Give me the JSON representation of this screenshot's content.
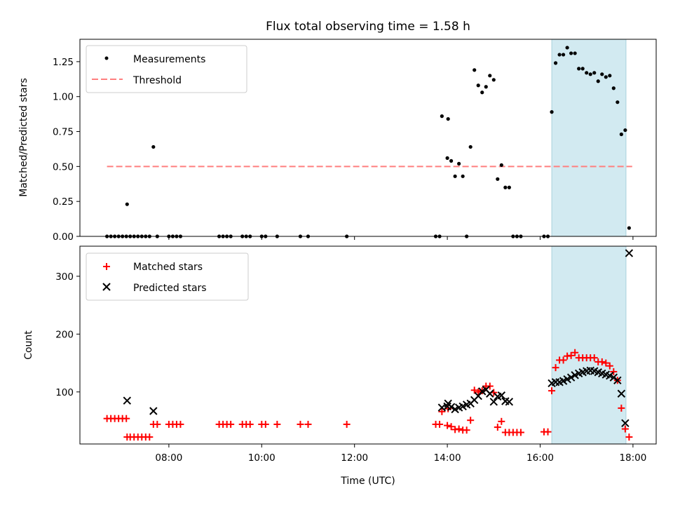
{
  "colors": {
    "measurement": "#000000",
    "threshold": "#ff7f7f",
    "matched": "#ff0000",
    "predicted": "#000000",
    "highlight": "#add8e6"
  },
  "chart_data": [
    {
      "type": "scatter",
      "title": "Flux total observing time = 1.58 h",
      "xlabel": "",
      "ylabel": "Matched/Predicted stars",
      "xlim": [
        "06:05",
        "18:30"
      ],
      "ylim": [
        0,
        1.41
      ],
      "yticks": [
        "0.00",
        "0.25",
        "0.50",
        "0.75",
        "1.00",
        "1.25"
      ],
      "legend": {
        "position": "top-left",
        "entries": [
          "Measurements",
          "Threshold"
        ]
      },
      "highlight_span": [
        "16:15",
        "17:51"
      ],
      "threshold": {
        "name": "Threshold",
        "value": 0.5,
        "x_range": [
          "06:40",
          "17:59"
        ]
      },
      "series": [
        {
          "name": "Measurements",
          "points": [
            [
              "06:40",
              0
            ],
            [
              "06:45",
              0
            ],
            [
              "06:50",
              0
            ],
            [
              "06:55",
              0
            ],
            [
              "07:00",
              0
            ],
            [
              "07:05",
              0
            ],
            [
              "07:06",
              0.23
            ],
            [
              "07:10",
              0
            ],
            [
              "07:15",
              0
            ],
            [
              "07:20",
              0
            ],
            [
              "07:25",
              0
            ],
            [
              "07:30",
              0
            ],
            [
              "07:35",
              0
            ],
            [
              "07:40",
              0.64
            ],
            [
              "07:45",
              0
            ],
            [
              "08:00",
              0
            ],
            [
              "08:05",
              0
            ],
            [
              "08:10",
              0
            ],
            [
              "08:15",
              0
            ],
            [
              "09:05",
              0
            ],
            [
              "09:10",
              0
            ],
            [
              "09:15",
              0
            ],
            [
              "09:20",
              0
            ],
            [
              "09:35",
              0
            ],
            [
              "09:40",
              0
            ],
            [
              "09:45",
              0
            ],
            [
              "10:00",
              0
            ],
            [
              "10:05",
              0
            ],
            [
              "10:20",
              0
            ],
            [
              "10:50",
              0
            ],
            [
              "11:00",
              0
            ],
            [
              "11:50",
              0
            ],
            [
              "13:45",
              0
            ],
            [
              "13:50",
              0
            ],
            [
              "13:53",
              0.86
            ],
            [
              "14:00",
              0.56
            ],
            [
              "14:01",
              0.84
            ],
            [
              "14:05",
              0.54
            ],
            [
              "14:10",
              0.43
            ],
            [
              "14:15",
              0.52
            ],
            [
              "14:20",
              0.43
            ],
            [
              "14:25",
              0
            ],
            [
              "14:30",
              0.64
            ],
            [
              "14:35",
              1.19
            ],
            [
              "14:40",
              1.08
            ],
            [
              "14:45",
              1.03
            ],
            [
              "14:50",
              1.07
            ],
            [
              "14:55",
              1.15
            ],
            [
              "15:00",
              1.12
            ],
            [
              "15:05",
              0.41
            ],
            [
              "15:10",
              0.51
            ],
            [
              "15:15",
              0.35
            ],
            [
              "15:20",
              0.35
            ],
            [
              "15:25",
              0
            ],
            [
              "15:30",
              0
            ],
            [
              "15:35",
              0
            ],
            [
              "16:05",
              0
            ],
            [
              "16:10",
              0
            ],
            [
              "16:15",
              0.89
            ],
            [
              "16:20",
              1.24
            ],
            [
              "16:25",
              1.3
            ],
            [
              "16:30",
              1.3
            ],
            [
              "16:35",
              1.35
            ],
            [
              "16:40",
              1.31
            ],
            [
              "16:45",
              1.31
            ],
            [
              "16:50",
              1.2
            ],
            [
              "16:55",
              1.2
            ],
            [
              "17:00",
              1.17
            ],
            [
              "17:05",
              1.16
            ],
            [
              "17:10",
              1.17
            ],
            [
              "17:15",
              1.11
            ],
            [
              "17:20",
              1.16
            ],
            [
              "17:25",
              1.14
            ],
            [
              "17:30",
              1.15
            ],
            [
              "17:35",
              1.06
            ],
            [
              "17:40",
              0.96
            ],
            [
              "17:45",
              0.73
            ],
            [
              "17:50",
              0.76
            ],
            [
              "17:55",
              0.06
            ]
          ]
        }
      ]
    },
    {
      "type": "scatter",
      "title": "",
      "xlabel": "Time (UTC)",
      "ylabel": "Count",
      "xlim": [
        "06:05",
        "18:30"
      ],
      "ylim": [
        10,
        352
      ],
      "yticks": [
        "100",
        "200",
        "300"
      ],
      "xticks": [
        "08:00",
        "10:00",
        "12:00",
        "14:00",
        "16:00",
        "18:00"
      ],
      "legend": {
        "position": "top-left",
        "entries": [
          "Matched stars",
          "Predicted stars"
        ]
      },
      "highlight_span": [
        "16:15",
        "17:51"
      ],
      "series": [
        {
          "name": "Matched stars",
          "points": [
            [
              "06:40",
              54
            ],
            [
              "06:45",
              54
            ],
            [
              "06:50",
              54
            ],
            [
              "06:55",
              54
            ],
            [
              "07:00",
              54
            ],
            [
              "07:05",
              54
            ],
            [
              "07:06",
              22
            ],
            [
              "07:10",
              22
            ],
            [
              "07:15",
              22
            ],
            [
              "07:20",
              22
            ],
            [
              "07:25",
              22
            ],
            [
              "07:30",
              22
            ],
            [
              "07:35",
              22
            ],
            [
              "07:40",
              44
            ],
            [
              "07:45",
              44
            ],
            [
              "08:00",
              44
            ],
            [
              "08:05",
              44
            ],
            [
              "08:10",
              44
            ],
            [
              "08:15",
              44
            ],
            [
              "09:05",
              44
            ],
            [
              "09:10",
              44
            ],
            [
              "09:15",
              44
            ],
            [
              "09:20",
              44
            ],
            [
              "09:35",
              44
            ],
            [
              "09:40",
              44
            ],
            [
              "09:45",
              44
            ],
            [
              "10:00",
              44
            ],
            [
              "10:05",
              44
            ],
            [
              "10:20",
              44
            ],
            [
              "10:50",
              44
            ],
            [
              "11:00",
              44
            ],
            [
              "11:50",
              44
            ],
            [
              "13:45",
              44
            ],
            [
              "13:50",
              44
            ],
            [
              "13:53",
              66
            ],
            [
              "14:00",
              42
            ],
            [
              "14:01",
              71
            ],
            [
              "14:05",
              40
            ],
            [
              "14:10",
              35
            ],
            [
              "14:15",
              36
            ],
            [
              "14:20",
              34
            ],
            [
              "14:25",
              34
            ],
            [
              "14:30",
              51
            ],
            [
              "14:35",
              103
            ],
            [
              "14:40",
              100
            ],
            [
              "14:45",
              102
            ],
            [
              "14:50",
              110
            ],
            [
              "14:55",
              110
            ],
            [
              "15:00",
              99
            ],
            [
              "15:05",
              39
            ],
            [
              "15:10",
              49
            ],
            [
              "15:15",
              30
            ],
            [
              "15:20",
              30
            ],
            [
              "15:25",
              30
            ],
            [
              "15:30",
              30
            ],
            [
              "15:35",
              30
            ],
            [
              "16:05",
              31
            ],
            [
              "16:10",
              31
            ],
            [
              "16:15",
              102
            ],
            [
              "16:20",
              142
            ],
            [
              "16:25",
              155
            ],
            [
              "16:30",
              155
            ],
            [
              "16:35",
              162
            ],
            [
              "16:40",
              163
            ],
            [
              "16:45",
              168
            ],
            [
              "16:50",
              159
            ],
            [
              "16:55",
              159
            ],
            [
              "17:00",
              159
            ],
            [
              "17:05",
              159
            ],
            [
              "17:10",
              159
            ],
            [
              "17:15",
              152
            ],
            [
              "17:20",
              152
            ],
            [
              "17:25",
              150
            ],
            [
              "17:30",
              145
            ],
            [
              "17:35",
              135
            ],
            [
              "17:40",
              120
            ],
            [
              "17:45",
              72
            ],
            [
              "17:50",
              36
            ],
            [
              "17:55",
              22
            ]
          ]
        },
        {
          "name": "Predicted stars",
          "points": [
            [
              "07:06",
              85
            ],
            [
              "07:40",
              67
            ],
            [
              "13:53",
              73
            ],
            [
              "14:00",
              75
            ],
            [
              "14:01",
              80
            ],
            [
              "14:05",
              74
            ],
            [
              "14:10",
              70
            ],
            [
              "14:15",
              73
            ],
            [
              "14:20",
              75
            ],
            [
              "14:25",
              78
            ],
            [
              "14:30",
              80
            ],
            [
              "14:35",
              86
            ],
            [
              "14:40",
              93
            ],
            [
              "14:45",
              101
            ],
            [
              "14:50",
              104
            ],
            [
              "14:55",
              97
            ],
            [
              "15:00",
              83
            ],
            [
              "15:05",
              92
            ],
            [
              "15:10",
              94
            ],
            [
              "15:15",
              84
            ],
            [
              "15:20",
              83
            ],
            [
              "16:15",
              115
            ],
            [
              "16:20",
              117
            ],
            [
              "16:25",
              117
            ],
            [
              "16:30",
              119
            ],
            [
              "16:35",
              122
            ],
            [
              "16:40",
              125
            ],
            [
              "16:45",
              129
            ],
            [
              "16:50",
              132
            ],
            [
              "16:55",
              134
            ],
            [
              "17:00",
              136
            ],
            [
              "17:05",
              137
            ],
            [
              "17:10",
              136
            ],
            [
              "17:15",
              134
            ],
            [
              "17:20",
              132
            ],
            [
              "17:25",
              130
            ],
            [
              "17:30",
              128
            ],
            [
              "17:35",
              125
            ],
            [
              "17:40",
              120
            ],
            [
              "17:45",
              97
            ],
            [
              "17:50",
              46
            ],
            [
              "17:55",
              340
            ]
          ]
        }
      ]
    }
  ]
}
